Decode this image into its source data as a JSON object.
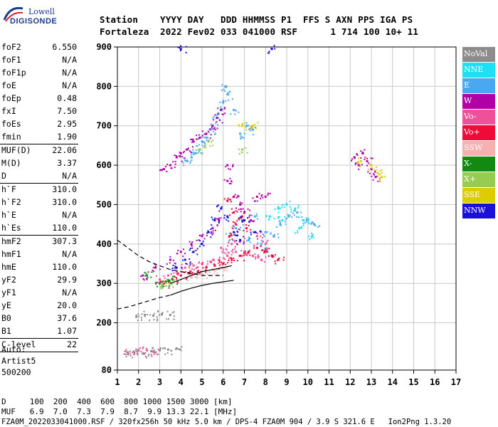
{
  "logo": {
    "line1": "Lowell",
    "line2": "DIGISONDE"
  },
  "header": {
    "row1": "Station    YYYY DAY   DDD HHMMSS P1  FFS S AXN PPS IGA PS",
    "row2": "Fortaleza  2022 Fev02 033 041000 RSF      1 714 100 10+ 11"
  },
  "params": [
    {
      "label": "foF2",
      "value": "6.550",
      "sep": false
    },
    {
      "label": "foF1",
      "value": "N/A",
      "sep": false
    },
    {
      "label": "foF1p",
      "value": "N/A",
      "sep": false
    },
    {
      "label": "foE",
      "value": "N/A",
      "sep": false
    },
    {
      "label": "foEp",
      "value": "0.48",
      "sep": false
    },
    {
      "label": "fxI",
      "value": "7.50",
      "sep": false
    },
    {
      "label": "foEs",
      "value": "2.95",
      "sep": false
    },
    {
      "label": "fmin",
      "value": "1.90",
      "sep": false
    },
    {
      "label": "MUF(D)",
      "value": "22.06",
      "sep": true
    },
    {
      "label": "M(D)",
      "value": "3.37",
      "sep": false
    },
    {
      "label": "D",
      "value": "N/A",
      "sep": false
    },
    {
      "label": "h`F",
      "value": "310.0",
      "sep": true
    },
    {
      "label": "h`F2",
      "value": "310.0",
      "sep": false
    },
    {
      "label": "h`E",
      "value": "N/A",
      "sep": false
    },
    {
      "label": "h`Es",
      "value": "110.0",
      "sep": false
    },
    {
      "label": "hmF2",
      "value": "307.3",
      "sep": true
    },
    {
      "label": "hmF1",
      "value": "N/A",
      "sep": false
    },
    {
      "label": "hmE",
      "value": "110.0",
      "sep": false
    },
    {
      "label": "yF2",
      "value": "29.9",
      "sep": false
    },
    {
      "label": "yF1",
      "value": "N/A",
      "sep": false
    },
    {
      "label": "yE",
      "value": "20.0",
      "sep": false
    },
    {
      "label": "B0",
      "value": "37.6",
      "sep": false
    },
    {
      "label": "B1",
      "value": "1.07",
      "sep": false
    },
    {
      "label": "C-level",
      "value": "22",
      "sep": true
    }
  ],
  "autoscale": {
    "line1": "Auto:",
    "line2": "Artist5",
    "line3": "500200"
  },
  "legend": [
    {
      "label": "NoVal",
      "color": "#8c8c8c"
    },
    {
      "label": "NNE",
      "color": "#1ee0f5"
    },
    {
      "label": "E",
      "color": "#4aa8f0"
    },
    {
      "label": "W",
      "color": "#b000a8"
    },
    {
      "label": "Vo-",
      "color": "#f0509a"
    },
    {
      "label": "Vo+",
      "color": "#f00a3a"
    },
    {
      "label": "SSW",
      "color": "#f5b0b0"
    },
    {
      "label": "X-",
      "color": "#108a10"
    },
    {
      "label": "X+",
      "color": "#98cc50"
    },
    {
      "label": "SSE",
      "color": "#dccc00"
    },
    {
      "label": "NNW",
      "color": "#1a10d8"
    }
  ],
  "footer": {
    "line1": "D     100  200  400  600  800 1000 1500 3000 [km]",
    "line2": "MUF   6.9  7.0  7.3  7.9  8.7  9.9 13.3 22.1 [MHz]",
    "line3": "FZA0M_2022033041000.RSF / 320fx256h 50 kHz 5.0 km / DPS-4 FZA0M 904 / 3.9 S 321.6 E   Ion2Png 1.3.20"
  },
  "chart_data": {
    "type": "scatter",
    "title": "",
    "xlabel": "",
    "ylabel": "",
    "xlim": [
      1,
      17
    ],
    "ylim": [
      80,
      900
    ],
    "x_ticks": [
      1,
      2,
      3,
      4,
      5,
      6,
      7,
      8,
      9,
      10,
      11,
      12,
      13,
      14,
      15,
      16,
      17
    ],
    "y_ticks": [
      80,
      200,
      300,
      400,
      500,
      600,
      700,
      800,
      900
    ],
    "grid": true,
    "legend_position": "right",
    "series": [
      {
        "name": "E",
        "points": [
          [
            6.1,
            800
          ],
          [
            6.2,
            780
          ],
          [
            6.0,
            760
          ],
          [
            5.9,
            740
          ],
          [
            5.7,
            720
          ],
          [
            5.5,
            700
          ],
          [
            5.4,
            690
          ],
          [
            5.2,
            670
          ],
          [
            5.0,
            660
          ],
          [
            4.9,
            640
          ],
          [
            4.7,
            630
          ],
          [
            4.5,
            620
          ],
          [
            4.3,
            610
          ],
          [
            6.5,
            740
          ],
          [
            6.8,
            680
          ],
          [
            7.1,
            700
          ],
          [
            7.4,
            690
          ],
          [
            8.0,
            430
          ],
          [
            8.4,
            420
          ],
          [
            8.7,
            450
          ],
          [
            9.1,
            470
          ],
          [
            9.5,
            480
          ],
          [
            10.0,
            460
          ],
          [
            10.3,
            450
          ],
          [
            6.3,
            420
          ],
          [
            6.6,
            440
          ],
          [
            7.2,
            410
          ],
          [
            7.8,
            400
          ],
          [
            8.1,
            380
          ],
          [
            7.5,
            470
          ],
          [
            6.9,
            460
          ]
        ]
      },
      {
        "name": "NNE",
        "points": [
          [
            8.2,
            470
          ],
          [
            8.6,
            490
          ],
          [
            9.0,
            500
          ],
          [
            9.4,
            490
          ],
          [
            9.8,
            460
          ],
          [
            10.2,
            420
          ],
          [
            9.6,
            440
          ],
          [
            8.8,
            460
          ]
        ]
      },
      {
        "name": "W",
        "points": [
          [
            3.2,
            590
          ],
          [
            3.5,
            600
          ],
          [
            3.8,
            620
          ],
          [
            4.0,
            630
          ],
          [
            4.3,
            640
          ],
          [
            4.6,
            660
          ],
          [
            4.9,
            670
          ],
          [
            5.2,
            680
          ],
          [
            5.5,
            700
          ],
          [
            5.7,
            720
          ],
          [
            5.9,
            740
          ],
          [
            12.2,
            620
          ],
          [
            12.4,
            600
          ],
          [
            12.6,
            630
          ],
          [
            12.8,
            610
          ],
          [
            13.0,
            590
          ],
          [
            13.2,
            570
          ],
          [
            6.2,
            560
          ],
          [
            6.5,
            520
          ],
          [
            6.8,
            500
          ],
          [
            7.0,
            480
          ],
          [
            7.3,
            460
          ],
          [
            5.8,
            460
          ],
          [
            5.5,
            440
          ],
          [
            5.0,
            420
          ],
          [
            4.5,
            400
          ],
          [
            4.0,
            380
          ],
          [
            3.5,
            360
          ],
          [
            2.8,
            340
          ],
          [
            2.2,
            320
          ],
          [
            7.6,
            520
          ],
          [
            8.0,
            520
          ],
          [
            6.2,
            600
          ]
        ]
      },
      {
        "name": "Vo-",
        "points": [
          [
            3.0,
            310
          ],
          [
            3.4,
            320
          ],
          [
            3.8,
            330
          ],
          [
            4.2,
            340
          ],
          [
            4.6,
            345
          ],
          [
            5.0,
            350
          ],
          [
            5.4,
            355
          ],
          [
            5.8,
            360
          ],
          [
            6.2,
            370
          ],
          [
            6.6,
            380
          ],
          [
            7.0,
            380
          ],
          [
            7.4,
            370
          ],
          [
            7.8,
            360
          ],
          [
            8.0,
            400
          ],
          [
            7.6,
            420
          ],
          [
            6.8,
            410
          ],
          [
            6.4,
            400
          ],
          [
            5.9,
            390
          ],
          [
            1.5,
            125
          ],
          [
            2.0,
            130
          ],
          [
            2.4,
            130
          ],
          [
            2.8,
            125
          ]
        ]
      },
      {
        "name": "Vo+",
        "points": [
          [
            3.2,
            300
          ],
          [
            3.6,
            310
          ],
          [
            4.0,
            320
          ],
          [
            4.4,
            325
          ],
          [
            4.8,
            330
          ],
          [
            5.2,
            340
          ],
          [
            5.6,
            345
          ],
          [
            6.0,
            350
          ],
          [
            6.4,
            360
          ],
          [
            6.8,
            370
          ],
          [
            7.2,
            380
          ],
          [
            7.6,
            390
          ],
          [
            8.0,
            380
          ],
          [
            8.3,
            370
          ],
          [
            8.6,
            360
          ],
          [
            6.3,
            420
          ],
          [
            6.6,
            450
          ],
          [
            6.9,
            470
          ],
          [
            7.1,
            440
          ],
          [
            6.2,
            510
          ],
          [
            6.5,
            480
          ]
        ]
      },
      {
        "name": "SSW",
        "points": [
          [
            4.5,
            315
          ],
          [
            5.0,
            325
          ],
          [
            5.5,
            335
          ],
          [
            6.0,
            340
          ]
        ]
      },
      {
        "name": "X-",
        "points": [
          [
            3.0,
            300
          ],
          [
            3.3,
            305
          ],
          [
            3.6,
            310
          ],
          [
            2.4,
            320
          ]
        ]
      },
      {
        "name": "X+",
        "points": [
          [
            3.1,
            295
          ],
          [
            3.5,
            300
          ],
          [
            4.9,
            640
          ],
          [
            5.3,
            660
          ],
          [
            6.9,
            640
          ]
        ]
      },
      {
        "name": "SSE",
        "points": [
          [
            12.5,
            610
          ],
          [
            13.0,
            600
          ],
          [
            13.3,
            580
          ],
          [
            13.5,
            570
          ],
          [
            6.9,
            700
          ],
          [
            7.4,
            700
          ]
        ]
      },
      {
        "name": "NNW",
        "points": [
          [
            4.2,
            360
          ],
          [
            4.6,
            380
          ],
          [
            5.0,
            400
          ],
          [
            5.3,
            430
          ],
          [
            5.6,
            460
          ],
          [
            5.9,
            490
          ],
          [
            6.2,
            470
          ],
          [
            6.5,
            430
          ],
          [
            6.8,
            410
          ],
          [
            3.8,
            340
          ],
          [
            7.0,
            460
          ],
          [
            7.5,
            430
          ],
          [
            8.3,
            895
          ],
          [
            4.0,
            895
          ]
        ]
      },
      {
        "name": "NoVal",
        "points": [
          [
            1.5,
            120
          ],
          [
            1.8,
            125
          ],
          [
            2.2,
            122
          ],
          [
            2.6,
            128
          ],
          [
            3.0,
            130
          ],
          [
            3.4,
            132
          ],
          [
            3.8,
            135
          ],
          [
            1.9,
            215
          ],
          [
            2.3,
            220
          ],
          [
            2.7,
            218
          ],
          [
            3.1,
            222
          ],
          [
            3.5,
            220
          ]
        ]
      }
    ],
    "trace_curves": [
      {
        "name": "dashed-upper",
        "style": "dashed",
        "points": [
          [
            1.0,
            410
          ],
          [
            1.5,
            390
          ],
          [
            2.0,
            370
          ],
          [
            2.5,
            355
          ],
          [
            3.0,
            345
          ],
          [
            3.5,
            335
          ],
          [
            4.0,
            330
          ],
          [
            4.5,
            325
          ],
          [
            5.0,
            320
          ],
          [
            5.5,
            320
          ],
          [
            6.0,
            320
          ]
        ]
      },
      {
        "name": "solid-upper",
        "style": "solid",
        "points": [
          [
            3.5,
            300
          ],
          [
            4.0,
            310
          ],
          [
            4.5,
            320
          ],
          [
            5.0,
            330
          ],
          [
            5.5,
            335
          ],
          [
            6.0,
            340
          ],
          [
            6.4,
            345
          ]
        ]
      },
      {
        "name": "dashed-lower",
        "style": "dashed",
        "points": [
          [
            1.0,
            235
          ],
          [
            1.5,
            240
          ],
          [
            2.0,
            248
          ],
          [
            2.5,
            256
          ],
          [
            3.0,
            264
          ],
          [
            3.5,
            270
          ]
        ]
      },
      {
        "name": "solid-lower",
        "style": "solid",
        "points": [
          [
            3.5,
            270
          ],
          [
            4.0,
            280
          ],
          [
            4.5,
            288
          ],
          [
            5.0,
            295
          ],
          [
            5.5,
            300
          ],
          [
            6.0,
            304
          ],
          [
            6.5,
            308
          ]
        ]
      }
    ]
  }
}
